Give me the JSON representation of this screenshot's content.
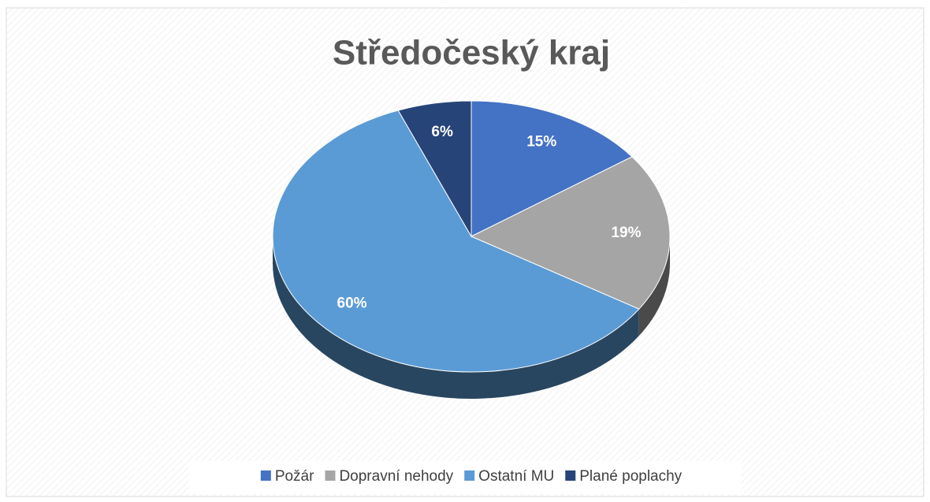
{
  "chart_data": {
    "type": "pie",
    "title": "Středočeský kraj",
    "categories": [
      "Požár",
      "Dopravní nehody",
      "Ostatní MU",
      "Plané poplachy"
    ],
    "values": [
      15,
      19,
      60,
      6
    ],
    "value_labels": [
      "15%",
      "19%",
      "60%",
      "6%"
    ],
    "colors": [
      "#4472c4",
      "#a5a5a5",
      "#5b9bd5",
      "#264478"
    ],
    "legend": "bottom"
  }
}
